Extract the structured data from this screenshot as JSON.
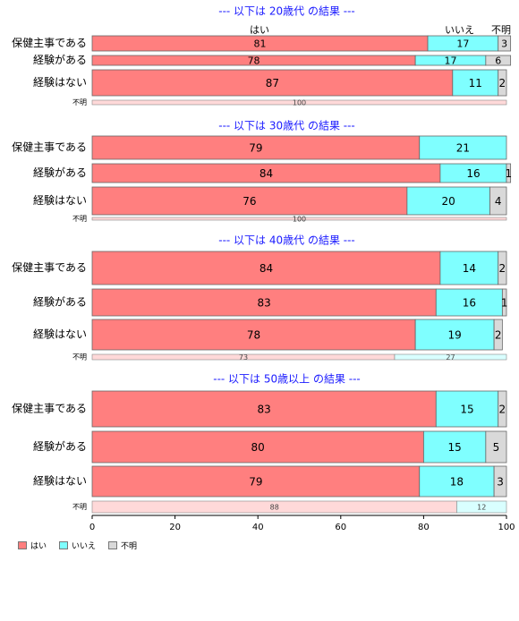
{
  "chart_data": {
    "type": "bar",
    "orientation": "horizontal",
    "stacked": true,
    "xlim": [
      0,
      100
    ],
    "xticks": [
      0,
      20,
      40,
      60,
      80,
      100
    ],
    "column_headers": [
      "はい",
      "いいえ",
      "不明"
    ],
    "colors": {
      "yes": "#ff7f7f",
      "no": "#7fffff",
      "unknown": "#d9d9d9",
      "yes_light": "#ffd9d9",
      "no_light": "#d9ffff",
      "title": "#1a1aff"
    },
    "legend": {
      "position": "bottom-left",
      "labels": [
        "はい",
        "いいえ",
        "不明"
      ]
    },
    "panels": [
      {
        "title": "--- 以下は 20歳代 の結果 ---",
        "rows": [
          {
            "label": "保健主事である",
            "values": [
              81,
              17,
              3
            ]
          },
          {
            "label": "経験がある",
            "values": [
              78,
              17,
              6
            ]
          },
          {
            "label": "経験はない",
            "values": [
              87,
              11,
              2
            ]
          }
        ],
        "unknown_row": {
          "label": "不明",
          "values": [
            100,
            0
          ]
        }
      },
      {
        "title": "--- 以下は 30歳代 の結果 ---",
        "rows": [
          {
            "label": "保健主事である",
            "values": [
              79,
              21,
              0
            ]
          },
          {
            "label": "経験がある",
            "values": [
              84,
              16,
              1
            ]
          },
          {
            "label": "経験はない",
            "values": [
              76,
              20,
              4
            ]
          }
        ],
        "unknown_row": {
          "label": "不明",
          "values": [
            100,
            0
          ]
        }
      },
      {
        "title": "--- 以下は 40歳代 の結果 ---",
        "rows": [
          {
            "label": "保健主事である",
            "values": [
              84,
              14,
              2
            ]
          },
          {
            "label": "経験がある",
            "values": [
              83,
              16,
              1
            ]
          },
          {
            "label": "経験はない",
            "values": [
              78,
              19,
              2
            ]
          }
        ],
        "unknown_row": {
          "label": "不明",
          "values": [
            73,
            27
          ]
        }
      },
      {
        "title": "--- 以下は 50歳以上 の結果 ---",
        "rows": [
          {
            "label": "保健主事である",
            "values": [
              83,
              15,
              2
            ]
          },
          {
            "label": "経験がある",
            "values": [
              80,
              15,
              5
            ]
          },
          {
            "label": "経験はない",
            "values": [
              79,
              18,
              3
            ]
          }
        ],
        "unknown_row": {
          "label": "不明",
          "values": [
            88,
            12
          ]
        }
      }
    ]
  }
}
